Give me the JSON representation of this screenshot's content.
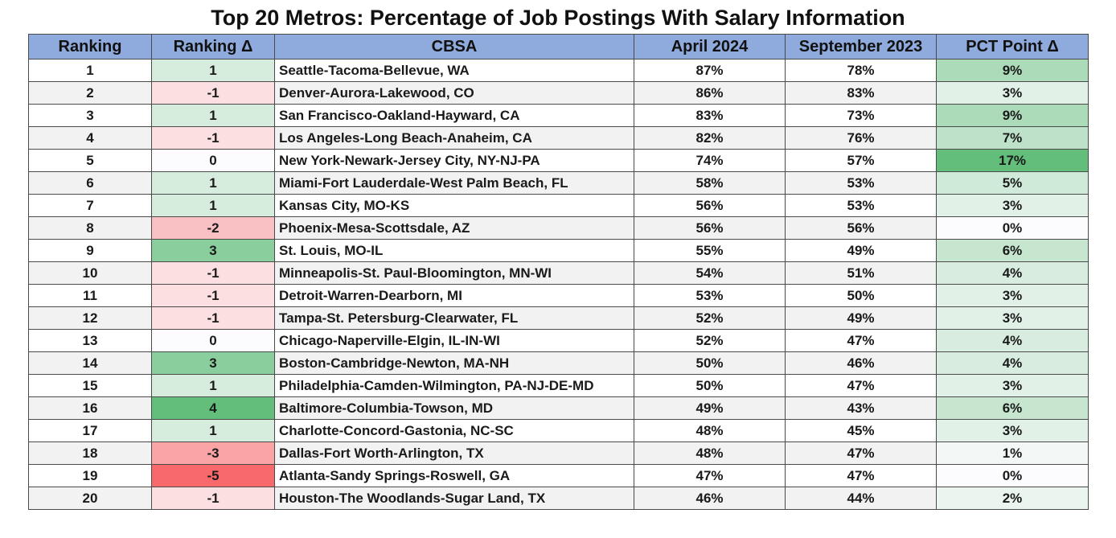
{
  "chart_data": {
    "type": "table",
    "title": "Top 20 Metros: Percentage of  Job Postings With Salary Information",
    "columns": [
      "Ranking",
      "Ranking Δ",
      "CBSA",
      "April 2024",
      "September 2023",
      "PCT Point Δ"
    ],
    "rows": [
      {
        "ranking": "1",
        "ranking_delta": "1",
        "cbsa": "Seattle-Tacoma-Bellevue, WA",
        "april_2024": "87%",
        "september_2023": "78%",
        "pct_point_delta": "9%"
      },
      {
        "ranking": "2",
        "ranking_delta": "-1",
        "cbsa": "Denver-Aurora-Lakewood, CO",
        "april_2024": "86%",
        "september_2023": "83%",
        "pct_point_delta": "3%"
      },
      {
        "ranking": "3",
        "ranking_delta": "1",
        "cbsa": "San Francisco-Oakland-Hayward, CA",
        "april_2024": "83%",
        "september_2023": "73%",
        "pct_point_delta": "9%"
      },
      {
        "ranking": "4",
        "ranking_delta": "-1",
        "cbsa": "Los Angeles-Long Beach-Anaheim, CA",
        "april_2024": "82%",
        "september_2023": "76%",
        "pct_point_delta": "7%"
      },
      {
        "ranking": "5",
        "ranking_delta": "0",
        "cbsa": "New York-Newark-Jersey City, NY-NJ-PA",
        "april_2024": "74%",
        "september_2023": "57%",
        "pct_point_delta": "17%"
      },
      {
        "ranking": "6",
        "ranking_delta": "1",
        "cbsa": "Miami-Fort Lauderdale-West Palm Beach, FL",
        "april_2024": "58%",
        "september_2023": "53%",
        "pct_point_delta": "5%"
      },
      {
        "ranking": "7",
        "ranking_delta": "1",
        "cbsa": "Kansas City, MO-KS",
        "april_2024": "56%",
        "september_2023": "53%",
        "pct_point_delta": "3%"
      },
      {
        "ranking": "8",
        "ranking_delta": "-2",
        "cbsa": "Phoenix-Mesa-Scottsdale, AZ",
        "april_2024": "56%",
        "september_2023": "56%",
        "pct_point_delta": "0%"
      },
      {
        "ranking": "9",
        "ranking_delta": "3",
        "cbsa": "St. Louis, MO-IL",
        "april_2024": "55%",
        "september_2023": "49%",
        "pct_point_delta": "6%"
      },
      {
        "ranking": "10",
        "ranking_delta": "-1",
        "cbsa": "Minneapolis-St. Paul-Bloomington, MN-WI",
        "april_2024": "54%",
        "september_2023": "51%",
        "pct_point_delta": "4%"
      },
      {
        "ranking": "11",
        "ranking_delta": "-1",
        "cbsa": "Detroit-Warren-Dearborn, MI",
        "april_2024": "53%",
        "september_2023": "50%",
        "pct_point_delta": "3%"
      },
      {
        "ranking": "12",
        "ranking_delta": "-1",
        "cbsa": "Tampa-St. Petersburg-Clearwater, FL",
        "april_2024": "52%",
        "september_2023": "49%",
        "pct_point_delta": "3%"
      },
      {
        "ranking": "13",
        "ranking_delta": "0",
        "cbsa": "Chicago-Naperville-Elgin, IL-IN-WI",
        "april_2024": "52%",
        "september_2023": "47%",
        "pct_point_delta": "4%"
      },
      {
        "ranking": "14",
        "ranking_delta": "3",
        "cbsa": "Boston-Cambridge-Newton, MA-NH",
        "april_2024": "50%",
        "september_2023": "46%",
        "pct_point_delta": "4%"
      },
      {
        "ranking": "15",
        "ranking_delta": "1",
        "cbsa": "Philadelphia-Camden-Wilmington, PA-NJ-DE-MD",
        "april_2024": "50%",
        "september_2023": "47%",
        "pct_point_delta": "3%"
      },
      {
        "ranking": "16",
        "ranking_delta": "4",
        "cbsa": "Baltimore-Columbia-Towson, MD",
        "april_2024": "49%",
        "september_2023": "43%",
        "pct_point_delta": "6%"
      },
      {
        "ranking": "17",
        "ranking_delta": "1",
        "cbsa": "Charlotte-Concord-Gastonia, NC-SC",
        "april_2024": "48%",
        "september_2023": "45%",
        "pct_point_delta": "3%"
      },
      {
        "ranking": "18",
        "ranking_delta": "-3",
        "cbsa": "Dallas-Fort Worth-Arlington, TX",
        "april_2024": "48%",
        "september_2023": "47%",
        "pct_point_delta": "1%"
      },
      {
        "ranking": "19",
        "ranking_delta": "-5",
        "cbsa": "Atlanta-Sandy Springs-Roswell, GA",
        "april_2024": "47%",
        "september_2023": "47%",
        "pct_point_delta": "0%"
      },
      {
        "ranking": "20",
        "ranking_delta": "-1",
        "cbsa": "Houston-The Woodlands-Sugar Land, TX",
        "april_2024": "46%",
        "september_2023": "44%",
        "pct_point_delta": "2%"
      }
    ]
  },
  "colors": {
    "header_bg": "#8faadc",
    "stripe_bg": "#f2f2f2",
    "positive": "#63be7b",
    "negative": "#f8696b",
    "neutral": "#fcfcff"
  }
}
